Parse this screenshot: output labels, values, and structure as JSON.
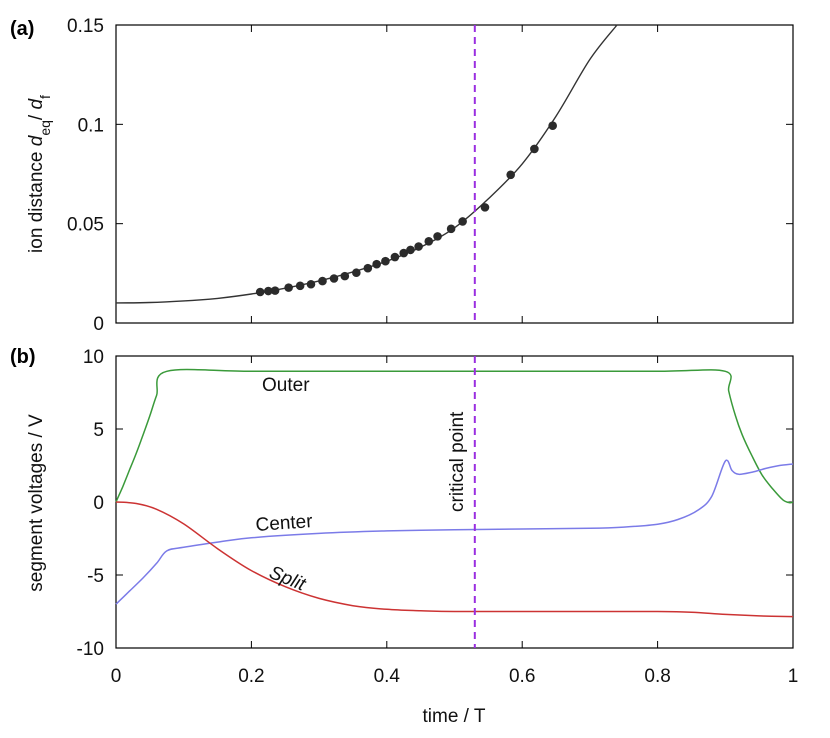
{
  "chart_data": [
    {
      "type": "scatter",
      "panel_label": "(a)",
      "ylabel_main": "ion distance ",
      "ylabel_d1": "d",
      "ylabel_sub1": "eq",
      "ylabel_sep": "/ ",
      "ylabel_d2": "d",
      "ylabel_sub2": "f",
      "xlim": [
        0,
        1
      ],
      "ylim": [
        0,
        0.15
      ],
      "xticks": [
        0,
        0.2,
        0.4,
        0.6,
        0.8,
        1
      ],
      "yticks": [
        0,
        0.05,
        0.1,
        0.15
      ],
      "ytick_labels": [
        "0",
        "0.05",
        "0.1",
        "0.15"
      ],
      "critical_x": 0.53,
      "fit_curve": {
        "x": [
          0,
          0.05,
          0.1,
          0.15,
          0.2,
          0.25,
          0.3,
          0.35,
          0.4,
          0.45,
          0.5,
          0.55,
          0.6,
          0.65,
          0.7,
          0.74
        ],
        "y": [
          0.0101,
          0.0103,
          0.0111,
          0.0124,
          0.0146,
          0.0175,
          0.0212,
          0.0257,
          0.0311,
          0.0382,
          0.0479,
          0.0625,
          0.0801,
          0.1041,
          0.1327,
          0.15
        ]
      },
      "points": {
        "x": [
          0.213,
          0.225,
          0.235,
          0.255,
          0.272,
          0.288,
          0.305,
          0.322,
          0.338,
          0.355,
          0.372,
          0.385,
          0.398,
          0.412,
          0.425,
          0.435,
          0.447,
          0.462,
          0.475,
          0.495,
          0.512,
          0.545,
          0.583,
          0.618,
          0.645
        ],
        "y": [
          0.0156,
          0.0161,
          0.0163,
          0.0178,
          0.0187,
          0.0195,
          0.0211,
          0.0224,
          0.0236,
          0.0253,
          0.0276,
          0.0296,
          0.0311,
          0.0332,
          0.0352,
          0.0368,
          0.0385,
          0.0411,
          0.0436,
          0.0474,
          0.0511,
          0.0582,
          0.0746,
          0.0876,
          0.0993
        ]
      }
    },
    {
      "type": "line",
      "panel_label": "(b)",
      "xlabel": "time / T",
      "ylabel": "segment voltages / V",
      "xlim": [
        0,
        1
      ],
      "ylim": [
        -10,
        10
      ],
      "xticks": [
        0,
        0.2,
        0.4,
        0.6,
        0.8,
        1
      ],
      "xtick_labels": [
        "0",
        "0.2",
        "0.4",
        "0.6",
        "0.8",
        "1"
      ],
      "yticks": [
        -10,
        -5,
        0,
        5,
        10
      ],
      "ytick_labels": [
        "-10",
        "-5",
        "0",
        "5",
        "10"
      ],
      "critical_x": 0.53,
      "critical_label": "critical point",
      "series": [
        {
          "name": "Outer",
          "color": "#3a9a3a",
          "x": [
            0,
            0.01,
            0.02,
            0.03,
            0.04,
            0.05,
            0.06,
            0.075,
            0.2,
            0.4,
            0.6,
            0.8,
            0.9,
            0.905,
            0.915,
            0.925,
            0.94,
            0.955,
            0.97,
            0.985,
            0.995,
            1
          ],
          "y": [
            0,
            1.05,
            2.2,
            3.35,
            4.6,
            5.9,
            7.3,
            8.95,
            8.95,
            8.95,
            8.95,
            8.95,
            8.95,
            7.6,
            5.9,
            4.6,
            3.1,
            1.8,
            0.9,
            0.15,
            -0.05,
            0
          ]
        },
        {
          "name": "Center",
          "color": "#7b7be8",
          "x": [
            0,
            0.02,
            0.04,
            0.06,
            0.075,
            0.1,
            0.15,
            0.2,
            0.3,
            0.4,
            0.5,
            0.6,
            0.7,
            0.75,
            0.8,
            0.83,
            0.86,
            0.88,
            0.9,
            0.91,
            0.92,
            0.94,
            0.96,
            0.98,
            1
          ],
          "y": [
            -7.0,
            -6.1,
            -5.2,
            -4.2,
            -3.35,
            -3.1,
            -2.75,
            -2.45,
            -2.15,
            -1.98,
            -1.9,
            -1.85,
            -1.8,
            -1.72,
            -1.52,
            -1.2,
            -0.55,
            0.4,
            2.8,
            2.15,
            1.9,
            2.05,
            2.3,
            2.5,
            2.6
          ]
        },
        {
          "name": "Split",
          "color": "#cc3333",
          "x": [
            0,
            0.03,
            0.06,
            0.1,
            0.15,
            0.2,
            0.25,
            0.3,
            0.35,
            0.4,
            0.45,
            0.5,
            0.6,
            0.7,
            0.8,
            0.85,
            0.9,
            0.95,
            1
          ],
          "y": [
            0,
            -0.1,
            -0.5,
            -1.5,
            -3.2,
            -4.7,
            -5.8,
            -6.6,
            -7.1,
            -7.35,
            -7.45,
            -7.5,
            -7.5,
            -7.5,
            -7.5,
            -7.55,
            -7.7,
            -7.8,
            -7.85
          ]
        }
      ]
    }
  ]
}
